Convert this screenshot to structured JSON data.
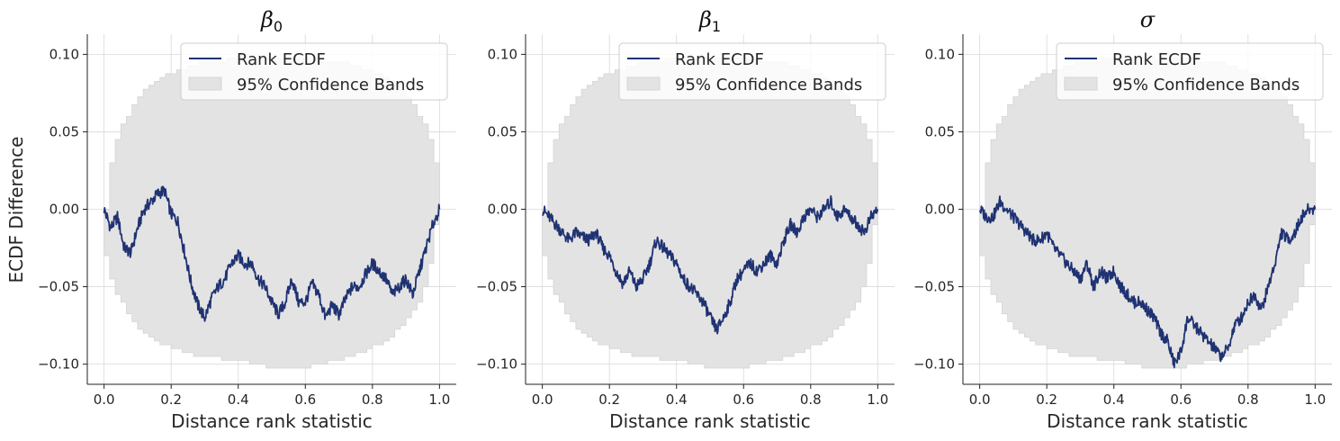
{
  "figure": {
    "ylabel": "ECDF Difference"
  },
  "colors": {
    "line": "#1f3272",
    "band": "#e3e3e3",
    "band_edge": "#d4d4d4",
    "grid": "#d9d9d9",
    "axis": "#222222"
  },
  "chart_data": [
    {
      "type": "line",
      "title": "β0",
      "title_symbol": "β",
      "title_subscript": "0",
      "xlabel": "Distance rank statistic",
      "ylabel": "ECDF Difference",
      "xlim": [
        -0.05,
        1.05
      ],
      "ylim": [
        -0.113,
        0.113
      ],
      "xticks": [
        0.0,
        0.2,
        0.4,
        0.6,
        0.8,
        1.0
      ],
      "xtick_labels": [
        "0.0",
        "0.2",
        "0.4",
        "0.6",
        "0.8",
        "1.0"
      ],
      "yticks": [
        0.1,
        0.05,
        0.0,
        -0.05,
        -0.1
      ],
      "ytick_labels": [
        "0.10",
        "0.05",
        "0.00",
        "−0.05",
        "−0.10"
      ],
      "grid": true,
      "legend_position": "top-right",
      "legend": [
        "Rank ECDF",
        "95% Confidence Bands"
      ],
      "series": [
        {
          "name": "Rank ECDF",
          "x": [
            0.0,
            0.02,
            0.04,
            0.06,
            0.08,
            0.1,
            0.12,
            0.14,
            0.16,
            0.18,
            0.2,
            0.22,
            0.24,
            0.26,
            0.28,
            0.3,
            0.32,
            0.34,
            0.36,
            0.38,
            0.4,
            0.42,
            0.44,
            0.46,
            0.48,
            0.5,
            0.52,
            0.54,
            0.56,
            0.58,
            0.6,
            0.62,
            0.64,
            0.66,
            0.68,
            0.7,
            0.72,
            0.74,
            0.76,
            0.78,
            0.8,
            0.82,
            0.84,
            0.86,
            0.88,
            0.9,
            0.92,
            0.94,
            0.96,
            0.98,
            1.0
          ],
          "values": [
            0.0,
            -0.012,
            -0.005,
            -0.025,
            -0.028,
            -0.012,
            0.0,
            0.005,
            0.01,
            0.012,
            -0.003,
            -0.008,
            -0.028,
            -0.048,
            -0.062,
            -0.07,
            -0.058,
            -0.05,
            -0.045,
            -0.035,
            -0.03,
            -0.035,
            -0.035,
            -0.045,
            -0.05,
            -0.06,
            -0.068,
            -0.06,
            -0.045,
            -0.06,
            -0.06,
            -0.048,
            -0.055,
            -0.07,
            -0.062,
            -0.068,
            -0.058,
            -0.05,
            -0.05,
            -0.042,
            -0.035,
            -0.04,
            -0.045,
            -0.055,
            -0.05,
            -0.045,
            -0.055,
            -0.04,
            -0.025,
            -0.01,
            0.0
          ]
        },
        {
          "name": "95% Confidence Bands",
          "x": [
            0.0,
            0.02,
            0.05,
            0.1,
            0.15,
            0.2,
            0.3,
            0.4,
            0.5,
            0.6,
            0.7,
            0.8,
            0.85,
            0.9,
            0.95,
            0.98,
            1.0
          ],
          "upper": [
            0.0,
            0.035,
            0.055,
            0.073,
            0.083,
            0.088,
            0.095,
            0.097,
            0.098,
            0.097,
            0.095,
            0.088,
            0.083,
            0.073,
            0.055,
            0.035,
            0.0
          ],
          "lower": [
            0.0,
            -0.035,
            -0.055,
            -0.073,
            -0.083,
            -0.088,
            -0.095,
            -0.097,
            -0.102,
            -0.102,
            -0.098,
            -0.09,
            -0.085,
            -0.075,
            -0.06,
            -0.04,
            -0.01
          ]
        }
      ]
    },
    {
      "type": "line",
      "title": "β1",
      "title_symbol": "β",
      "title_subscript": "1",
      "xlabel": "Distance rank statistic",
      "ylabel": "",
      "xlim": [
        -0.05,
        1.05
      ],
      "ylim": [
        -0.113,
        0.113
      ],
      "xticks": [
        0.0,
        0.2,
        0.4,
        0.6,
        0.8,
        1.0
      ],
      "xtick_labels": [
        "0.0",
        "0.2",
        "0.4",
        "0.6",
        "0.8",
        "1.0"
      ],
      "yticks": [
        0.1,
        0.05,
        0.0,
        -0.05,
        -0.1
      ],
      "ytick_labels": [
        "0.10",
        "0.05",
        "0.00",
        "−0.05",
        "−0.10"
      ],
      "grid": true,
      "legend_position": "top-right",
      "legend": [
        "Rank ECDF",
        "95% Confidence Bands"
      ],
      "series": [
        {
          "name": "Rank ECDF",
          "x": [
            0.0,
            0.02,
            0.04,
            0.06,
            0.08,
            0.1,
            0.12,
            0.14,
            0.16,
            0.18,
            0.2,
            0.22,
            0.24,
            0.26,
            0.28,
            0.3,
            0.32,
            0.34,
            0.36,
            0.38,
            0.4,
            0.42,
            0.44,
            0.46,
            0.48,
            0.5,
            0.52,
            0.54,
            0.56,
            0.58,
            0.6,
            0.62,
            0.64,
            0.66,
            0.68,
            0.7,
            0.72,
            0.74,
            0.76,
            0.78,
            0.8,
            0.82,
            0.84,
            0.86,
            0.88,
            0.9,
            0.92,
            0.94,
            0.96,
            0.98,
            1.0
          ],
          "values": [
            0.0,
            -0.005,
            -0.01,
            -0.015,
            -0.02,
            -0.015,
            -0.018,
            -0.02,
            -0.015,
            -0.025,
            -0.03,
            -0.04,
            -0.048,
            -0.04,
            -0.05,
            -0.045,
            -0.035,
            -0.02,
            -0.025,
            -0.03,
            -0.035,
            -0.045,
            -0.05,
            -0.055,
            -0.06,
            -0.07,
            -0.078,
            -0.07,
            -0.06,
            -0.045,
            -0.04,
            -0.035,
            -0.04,
            -0.035,
            -0.03,
            -0.035,
            -0.02,
            -0.01,
            -0.015,
            -0.005,
            0.0,
            -0.005,
            0.0,
            0.005,
            -0.005,
            0.0,
            -0.005,
            -0.01,
            -0.015,
            -0.005,
            0.0
          ]
        },
        {
          "name": "95% Confidence Bands",
          "x": [
            0.0,
            0.02,
            0.05,
            0.1,
            0.15,
            0.2,
            0.3,
            0.4,
            0.5,
            0.6,
            0.7,
            0.8,
            0.85,
            0.9,
            0.95,
            0.98,
            1.0
          ],
          "upper": [
            0.0,
            0.035,
            0.055,
            0.073,
            0.083,
            0.088,
            0.095,
            0.097,
            0.098,
            0.097,
            0.095,
            0.088,
            0.083,
            0.073,
            0.055,
            0.035,
            0.0
          ],
          "lower": [
            0.0,
            -0.035,
            -0.055,
            -0.073,
            -0.083,
            -0.088,
            -0.095,
            -0.097,
            -0.102,
            -0.102,
            -0.098,
            -0.09,
            -0.085,
            -0.075,
            -0.06,
            -0.04,
            -0.01
          ]
        }
      ]
    },
    {
      "type": "line",
      "title": "σ",
      "title_symbol": "σ",
      "title_subscript": "",
      "xlabel": "Distance rank statistic",
      "ylabel": "",
      "xlim": [
        -0.05,
        1.05
      ],
      "ylim": [
        -0.113,
        0.113
      ],
      "xticks": [
        0.0,
        0.2,
        0.4,
        0.6,
        0.8,
        1.0
      ],
      "xtick_labels": [
        "0.0",
        "0.2",
        "0.4",
        "0.6",
        "0.8",
        "1.0"
      ],
      "yticks": [
        0.1,
        0.05,
        0.0,
        -0.05,
        -0.1
      ],
      "ytick_labels": [
        "0.10",
        "0.05",
        "0.00",
        "−0.05",
        "−0.10"
      ],
      "grid": true,
      "legend_position": "top-right",
      "legend": [
        "Rank ECDF",
        "95% Confidence Bands"
      ],
      "series": [
        {
          "name": "Rank ECDF",
          "x": [
            0.0,
            0.02,
            0.04,
            0.06,
            0.08,
            0.1,
            0.12,
            0.14,
            0.16,
            0.18,
            0.2,
            0.22,
            0.24,
            0.26,
            0.28,
            0.3,
            0.32,
            0.34,
            0.36,
            0.38,
            0.4,
            0.42,
            0.44,
            0.46,
            0.48,
            0.5,
            0.52,
            0.54,
            0.56,
            0.58,
            0.6,
            0.62,
            0.64,
            0.66,
            0.68,
            0.7,
            0.72,
            0.74,
            0.76,
            0.78,
            0.8,
            0.82,
            0.84,
            0.86,
            0.88,
            0.9,
            0.92,
            0.94,
            0.96,
            0.98,
            1.0
          ],
          "values": [
            0.0,
            -0.005,
            -0.005,
            0.005,
            0.0,
            -0.005,
            -0.01,
            -0.015,
            -0.02,
            -0.02,
            -0.015,
            -0.025,
            -0.03,
            -0.035,
            -0.04,
            -0.045,
            -0.035,
            -0.05,
            -0.04,
            -0.045,
            -0.04,
            -0.05,
            -0.055,
            -0.06,
            -0.06,
            -0.065,
            -0.07,
            -0.08,
            -0.085,
            -0.1,
            -0.092,
            -0.07,
            -0.075,
            -0.08,
            -0.085,
            -0.09,
            -0.095,
            -0.09,
            -0.075,
            -0.07,
            -0.06,
            -0.055,
            -0.065,
            -0.05,
            -0.035,
            -0.015,
            -0.02,
            -0.015,
            -0.005,
            0.0,
            0.0
          ]
        },
        {
          "name": "95% Confidence Bands",
          "x": [
            0.0,
            0.02,
            0.05,
            0.1,
            0.15,
            0.2,
            0.3,
            0.4,
            0.5,
            0.6,
            0.7,
            0.8,
            0.85,
            0.9,
            0.95,
            0.98,
            1.0
          ],
          "upper": [
            0.0,
            0.035,
            0.055,
            0.073,
            0.083,
            0.088,
            0.095,
            0.097,
            0.098,
            0.097,
            0.095,
            0.088,
            0.083,
            0.073,
            0.055,
            0.035,
            0.0
          ],
          "lower": [
            0.0,
            -0.035,
            -0.055,
            -0.073,
            -0.083,
            -0.088,
            -0.095,
            -0.097,
            -0.102,
            -0.102,
            -0.098,
            -0.09,
            -0.085,
            -0.075,
            -0.06,
            -0.04,
            -0.01
          ]
        }
      ]
    }
  ]
}
